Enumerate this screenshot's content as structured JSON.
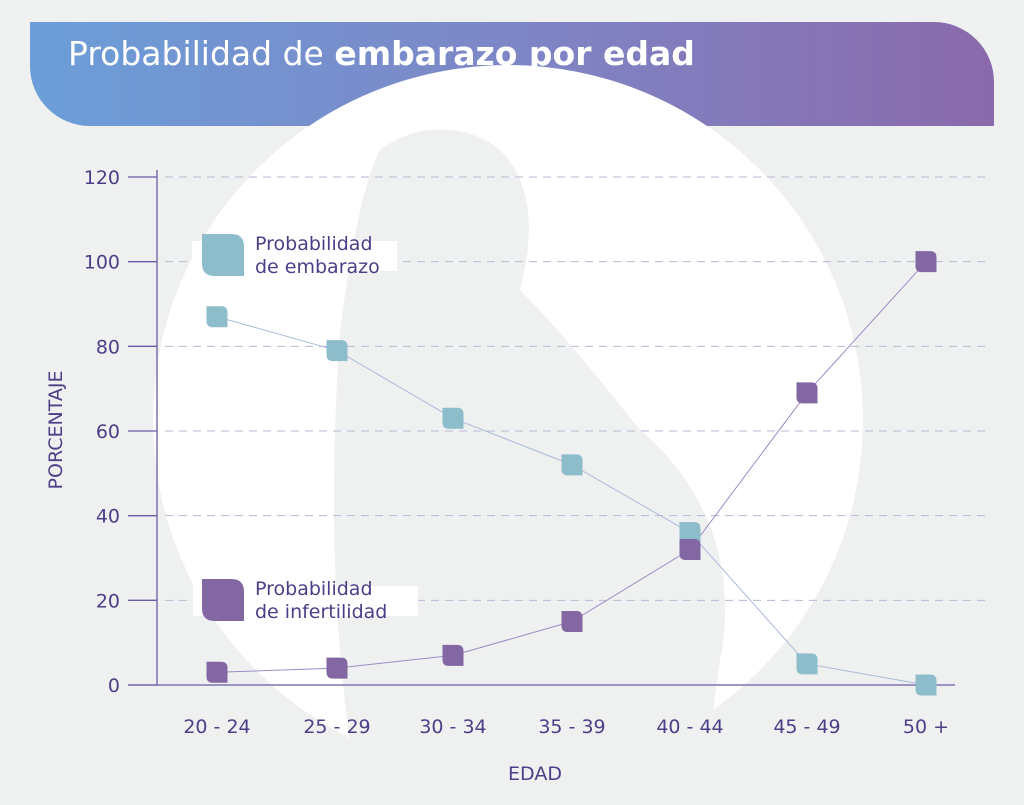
{
  "header": {
    "title_regular": "Probabilidad de ",
    "title_bold": "embarazo por edad"
  },
  "colors": {
    "embarazo": "#8dbccb",
    "infertilidad": "#8267a3",
    "axis": "#6b5aa5",
    "text": "#4b3f88",
    "header_start": "#6b9ed8",
    "header_end": "#8a6aab"
  },
  "chart_data": {
    "type": "line",
    "title": "Probabilidad de embarazo por edad",
    "xlabel": "EDAD",
    "ylabel": "PORCENTAJE",
    "categories": [
      "20 - 24",
      "25 - 29",
      "30 - 34",
      "35 - 39",
      "40 - 44",
      "45 - 49",
      "50 +"
    ],
    "ylim": [
      0,
      120
    ],
    "yticks": [
      0,
      20,
      40,
      60,
      80,
      100,
      120
    ],
    "grid": "horizontal dashed",
    "legend_placement": "inside-left",
    "series": [
      {
        "name": "Probabilidad de embarazo",
        "legend_lines": [
          "Probabilidad",
          "de embarazo"
        ],
        "values": [
          87,
          79,
          63,
          52,
          36,
          5,
          0
        ]
      },
      {
        "name": "Probabilidad de infertilidad",
        "legend_lines": [
          "Probabilidad",
          "de infertilidad"
        ],
        "values": [
          3,
          4,
          7,
          15,
          32,
          69,
          100
        ]
      }
    ]
  }
}
